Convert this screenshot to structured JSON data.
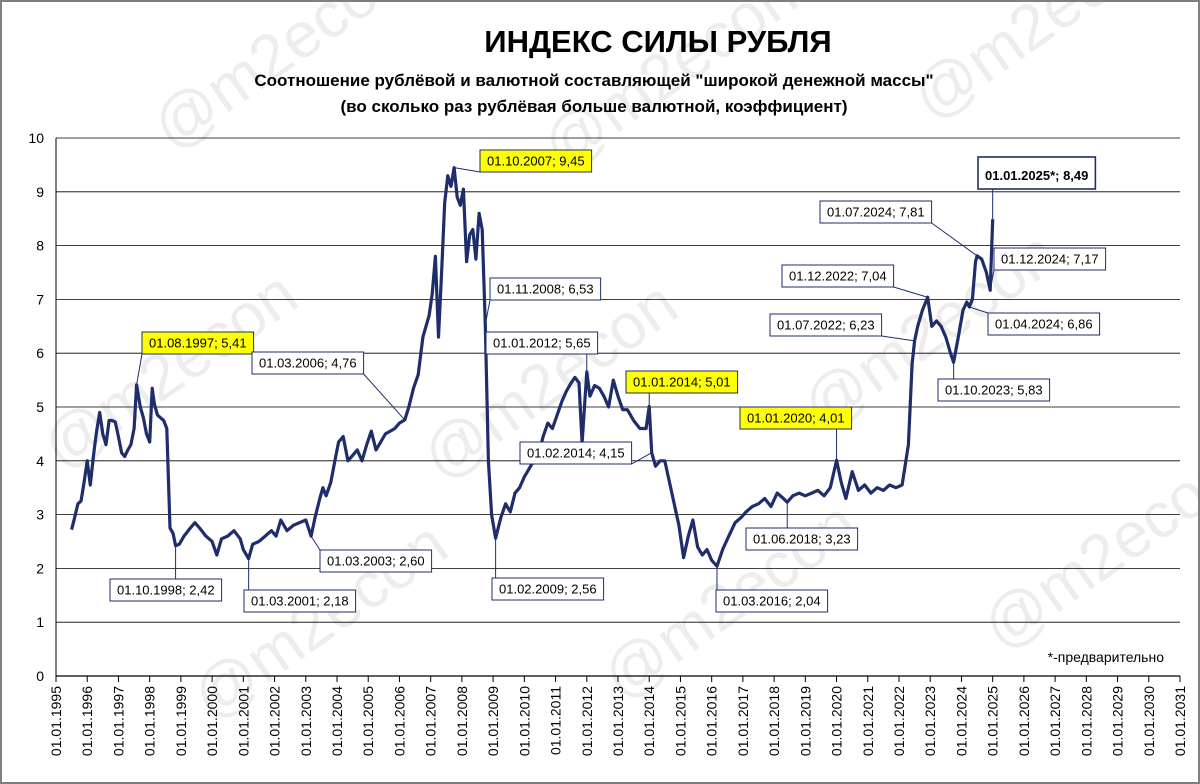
{
  "title": "ИНДЕКС СИЛЫ РУБЛЯ",
  "subtitle_line1": "Соотношение рублёвой и валютной составляющей \"широкой денежной массы\"",
  "subtitle_line2": "(во сколько раз рублёвая больше валютной, коэффициент)",
  "footnote": "*-предварительно",
  "watermark": "@m2econ",
  "colors": {
    "line": "#1f2d6b",
    "highlight": "#ffff00",
    "grid": "#000000"
  },
  "chart_data": {
    "type": "line",
    "title": "ИНДЕКС СИЛЫ РУБЛЯ",
    "ylim": [
      0,
      10
    ],
    "yticks": [
      0,
      1,
      2,
      3,
      4,
      5,
      6,
      7,
      8,
      9,
      10
    ],
    "xlim": [
      1995,
      2031
    ],
    "xtick_labels": [
      "01.01.1995",
      "01.01.1996",
      "01.01.1997",
      "01.01.1998",
      "01.01.1999",
      "01.01.2000",
      "01.01.2001",
      "01.01.2002",
      "01.01.2003",
      "01.01.2004",
      "01.01.2005",
      "01.01.2006",
      "01.01.2007",
      "01.01.2008",
      "01.01.2009",
      "01.01.2010",
      "01.01.2011",
      "01.01.2012",
      "01.01.2013",
      "01.01.2014",
      "01.01.2015",
      "01.01.2016",
      "01.01.2017",
      "01.01.2018",
      "01.01.2019",
      "01.01.2020",
      "01.01.2021",
      "01.01.2022",
      "01.01.2023",
      "01.01.2024",
      "01.01.2025",
      "01.01.2026",
      "01.01.2027",
      "01.01.2028",
      "01.01.2029",
      "01.01.2030",
      "01.01.2031"
    ],
    "grid": "horizontal",
    "series": [
      {
        "points": [
          [
            1995.5,
            2.72
          ],
          [
            1995.6,
            2.95
          ],
          [
            1995.7,
            3.2
          ],
          [
            1995.8,
            3.25
          ],
          [
            1995.9,
            3.6
          ],
          [
            1996.0,
            4.0
          ],
          [
            1996.1,
            3.55
          ],
          [
            1996.2,
            4.1
          ],
          [
            1996.3,
            4.55
          ],
          [
            1996.4,
            4.9
          ],
          [
            1996.5,
            4.5
          ],
          [
            1996.6,
            4.3
          ],
          [
            1996.7,
            4.75
          ],
          [
            1996.8,
            4.75
          ],
          [
            1996.9,
            4.72
          ],
          [
            1997.0,
            4.45
          ],
          [
            1997.1,
            4.15
          ],
          [
            1997.2,
            4.08
          ],
          [
            1997.3,
            4.2
          ],
          [
            1997.4,
            4.3
          ],
          [
            1997.5,
            4.6
          ],
          [
            1997.58,
            5.41
          ],
          [
            1997.7,
            5.0
          ],
          [
            1997.8,
            4.8
          ],
          [
            1997.9,
            4.5
          ],
          [
            1998.0,
            4.35
          ],
          [
            1998.08,
            5.35
          ],
          [
            1998.15,
            5.05
          ],
          [
            1998.25,
            4.85
          ],
          [
            1998.35,
            4.8
          ],
          [
            1998.45,
            4.75
          ],
          [
            1998.55,
            4.6
          ],
          [
            1998.65,
            2.75
          ],
          [
            1998.75,
            2.65
          ],
          [
            1998.83,
            2.42
          ],
          [
            1998.95,
            2.45
          ],
          [
            1999.1,
            2.6
          ],
          [
            1999.3,
            2.75
          ],
          [
            1999.45,
            2.85
          ],
          [
            1999.6,
            2.75
          ],
          [
            1999.8,
            2.6
          ],
          [
            2000.0,
            2.5
          ],
          [
            2000.15,
            2.25
          ],
          [
            2000.3,
            2.55
          ],
          [
            2000.5,
            2.6
          ],
          [
            2000.7,
            2.7
          ],
          [
            2000.9,
            2.55
          ],
          [
            2001.0,
            2.35
          ],
          [
            2001.17,
            2.18
          ],
          [
            2001.3,
            2.45
          ],
          [
            2001.5,
            2.5
          ],
          [
            2001.7,
            2.6
          ],
          [
            2001.9,
            2.7
          ],
          [
            2002.05,
            2.6
          ],
          [
            2002.2,
            2.9
          ],
          [
            2002.4,
            2.7
          ],
          [
            2002.6,
            2.8
          ],
          [
            2002.8,
            2.85
          ],
          [
            2003.0,
            2.9
          ],
          [
            2003.17,
            2.6
          ],
          [
            2003.3,
            2.95
          ],
          [
            2003.45,
            3.3
          ],
          [
            2003.55,
            3.5
          ],
          [
            2003.65,
            3.35
          ],
          [
            2003.8,
            3.6
          ],
          [
            2003.95,
            4.05
          ],
          [
            2004.05,
            4.35
          ],
          [
            2004.2,
            4.45
          ],
          [
            2004.35,
            4.0
          ],
          [
            2004.5,
            4.1
          ],
          [
            2004.65,
            4.2
          ],
          [
            2004.8,
            4.0
          ],
          [
            2004.95,
            4.3
          ],
          [
            2005.1,
            4.55
          ],
          [
            2005.25,
            4.2
          ],
          [
            2005.4,
            4.35
          ],
          [
            2005.55,
            4.5
          ],
          [
            2005.7,
            4.55
          ],
          [
            2005.85,
            4.6
          ],
          [
            2006.0,
            4.7
          ],
          [
            2006.17,
            4.76
          ],
          [
            2006.3,
            5.0
          ],
          [
            2006.45,
            5.35
          ],
          [
            2006.6,
            5.6
          ],
          [
            2006.75,
            6.3
          ],
          [
            2006.85,
            6.5
          ],
          [
            2006.95,
            6.7
          ],
          [
            2007.05,
            7.1
          ],
          [
            2007.15,
            7.8
          ],
          [
            2007.25,
            6.3
          ],
          [
            2007.35,
            7.5
          ],
          [
            2007.45,
            8.8
          ],
          [
            2007.55,
            9.3
          ],
          [
            2007.65,
            9.1
          ],
          [
            2007.75,
            9.45
          ],
          [
            2007.85,
            8.9
          ],
          [
            2007.95,
            8.75
          ],
          [
            2008.05,
            9.05
          ],
          [
            2008.15,
            7.7
          ],
          [
            2008.25,
            8.2
          ],
          [
            2008.35,
            8.3
          ],
          [
            2008.45,
            7.75
          ],
          [
            2008.55,
            8.6
          ],
          [
            2008.65,
            8.3
          ],
          [
            2008.75,
            6.53
          ],
          [
            2008.85,
            4.0
          ],
          [
            2008.95,
            3.0
          ],
          [
            2009.08,
            2.56
          ],
          [
            2009.25,
            2.95
          ],
          [
            2009.4,
            3.2
          ],
          [
            2009.55,
            3.05
          ],
          [
            2009.7,
            3.4
          ],
          [
            2009.85,
            3.5
          ],
          [
            2010.0,
            3.7
          ],
          [
            2010.15,
            3.85
          ],
          [
            2010.3,
            4.0
          ],
          [
            2010.45,
            4.1
          ],
          [
            2010.6,
            4.45
          ],
          [
            2010.75,
            4.7
          ],
          [
            2010.9,
            4.6
          ],
          [
            2011.05,
            4.85
          ],
          [
            2011.2,
            5.1
          ],
          [
            2011.35,
            5.3
          ],
          [
            2011.5,
            5.45
          ],
          [
            2011.62,
            5.55
          ],
          [
            2011.75,
            5.45
          ],
          [
            2011.85,
            4.33
          ],
          [
            2012.0,
            5.65
          ],
          [
            2012.1,
            5.2
          ],
          [
            2012.25,
            5.4
          ],
          [
            2012.4,
            5.35
          ],
          [
            2012.55,
            5.2
          ],
          [
            2012.7,
            5.0
          ],
          [
            2012.85,
            5.5
          ],
          [
            2013.0,
            5.2
          ],
          [
            2013.15,
            4.95
          ],
          [
            2013.3,
            4.95
          ],
          [
            2013.5,
            4.75
          ],
          [
            2013.7,
            4.6
          ],
          [
            2013.9,
            4.6
          ],
          [
            2014.0,
            5.01
          ],
          [
            2014.08,
            4.15
          ],
          [
            2014.2,
            3.9
          ],
          [
            2014.35,
            4.0
          ],
          [
            2014.5,
            4.0
          ],
          [
            2014.65,
            3.6
          ],
          [
            2014.8,
            3.2
          ],
          [
            2014.95,
            2.8
          ],
          [
            2015.1,
            2.2
          ],
          [
            2015.25,
            2.6
          ],
          [
            2015.4,
            2.9
          ],
          [
            2015.55,
            2.4
          ],
          [
            2015.7,
            2.25
          ],
          [
            2015.85,
            2.35
          ],
          [
            2016.0,
            2.15
          ],
          [
            2016.17,
            2.04
          ],
          [
            2016.35,
            2.35
          ],
          [
            2016.55,
            2.6
          ],
          [
            2016.75,
            2.85
          ],
          [
            2016.95,
            2.95
          ],
          [
            2017.1,
            3.05
          ],
          [
            2017.3,
            3.15
          ],
          [
            2017.5,
            3.2
          ],
          [
            2017.7,
            3.3
          ],
          [
            2017.9,
            3.15
          ],
          [
            2018.1,
            3.4
          ],
          [
            2018.3,
            3.3
          ],
          [
            2018.42,
            3.23
          ],
          [
            2018.6,
            3.35
          ],
          [
            2018.8,
            3.4
          ],
          [
            2019.0,
            3.35
          ],
          [
            2019.2,
            3.4
          ],
          [
            2019.4,
            3.45
          ],
          [
            2019.6,
            3.35
          ],
          [
            2019.8,
            3.5
          ],
          [
            2020.0,
            4.01
          ],
          [
            2020.15,
            3.6
          ],
          [
            2020.3,
            3.3
          ],
          [
            2020.5,
            3.8
          ],
          [
            2020.7,
            3.45
          ],
          [
            2020.9,
            3.55
          ],
          [
            2021.1,
            3.4
          ],
          [
            2021.3,
            3.5
          ],
          [
            2021.5,
            3.45
          ],
          [
            2021.7,
            3.55
          ],
          [
            2021.9,
            3.5
          ],
          [
            2022.1,
            3.55
          ],
          [
            2022.3,
            4.3
          ],
          [
            2022.42,
            5.8
          ],
          [
            2022.5,
            6.23
          ],
          [
            2022.6,
            6.5
          ],
          [
            2022.75,
            6.8
          ],
          [
            2022.92,
            7.04
          ],
          [
            2023.05,
            6.5
          ],
          [
            2023.2,
            6.6
          ],
          [
            2023.35,
            6.5
          ],
          [
            2023.5,
            6.3
          ],
          [
            2023.65,
            6.0
          ],
          [
            2023.75,
            5.83
          ],
          [
            2023.9,
            6.3
          ],
          [
            2024.05,
            6.8
          ],
          [
            2024.17,
            6.95
          ],
          [
            2024.25,
            6.86
          ],
          [
            2024.35,
            7.0
          ],
          [
            2024.45,
            7.7
          ],
          [
            2024.5,
            7.81
          ],
          [
            2024.65,
            7.75
          ],
          [
            2024.8,
            7.5
          ],
          [
            2024.92,
            7.17
          ],
          [
            2025.0,
            8.49
          ]
        ]
      }
    ],
    "annotations": [
      {
        "text": "01.08.1997;  5,41",
        "x": 1997.58,
        "y": 5.41,
        "highlight": true
      },
      {
        "text": "01.10.1998;  2,42",
        "x": 1998.83,
        "y": 2.42,
        "highlight": false
      },
      {
        "text": "01.03.2001;  2,18",
        "x": 2001.17,
        "y": 2.18,
        "highlight": false
      },
      {
        "text": "01.03.2003;  2,60",
        "x": 2003.17,
        "y": 2.6,
        "highlight": false
      },
      {
        "text": "01.03.2006;  4,76",
        "x": 2006.17,
        "y": 4.76,
        "highlight": false
      },
      {
        "text": "01.10.2007;  9,45",
        "x": 2007.75,
        "y": 9.45,
        "highlight": true
      },
      {
        "text": "01.11.2008;  6,53",
        "x": 2008.75,
        "y": 6.53,
        "highlight": false
      },
      {
        "text": "01.02.2009;  2,56",
        "x": 2009.08,
        "y": 2.56,
        "highlight": false
      },
      {
        "text": "01.01.2012;  5,65",
        "x": 2012.0,
        "y": 5.65,
        "highlight": false
      },
      {
        "text": "01.02.2014;  4,15",
        "x": 2014.08,
        "y": 4.15,
        "highlight": false
      },
      {
        "text": "01.01.2014;  5,01",
        "x": 2014.0,
        "y": 5.01,
        "highlight": true
      },
      {
        "text": "01.03.2016;  2,04",
        "x": 2016.17,
        "y": 2.04,
        "highlight": false
      },
      {
        "text": "01.06.2018;  3,23",
        "x": 2018.42,
        "y": 3.23,
        "highlight": false
      },
      {
        "text": "01.01.2020;  4,01",
        "x": 2020.0,
        "y": 4.01,
        "highlight": true
      },
      {
        "text": "01.07.2022;  6,23",
        "x": 2022.5,
        "y": 6.23,
        "highlight": false
      },
      {
        "text": "01.12.2022;  7,04",
        "x": 2022.92,
        "y": 7.04,
        "highlight": false
      },
      {
        "text": "01.10.2023;  5,83",
        "x": 2023.75,
        "y": 5.83,
        "highlight": false
      },
      {
        "text": "01.04.2024;  6,86",
        "x": 2024.25,
        "y": 6.86,
        "highlight": false
      },
      {
        "text": "01.07.2024;  7,81",
        "x": 2024.5,
        "y": 7.81,
        "highlight": false
      },
      {
        "text": "01.12.2024;  7,17",
        "x": 2024.92,
        "y": 7.17,
        "highlight": false
      },
      {
        "text": "01.01.2025*;   8,49",
        "x": 2025.0,
        "y": 8.49,
        "highlight": false,
        "emphasis": true
      }
    ]
  }
}
